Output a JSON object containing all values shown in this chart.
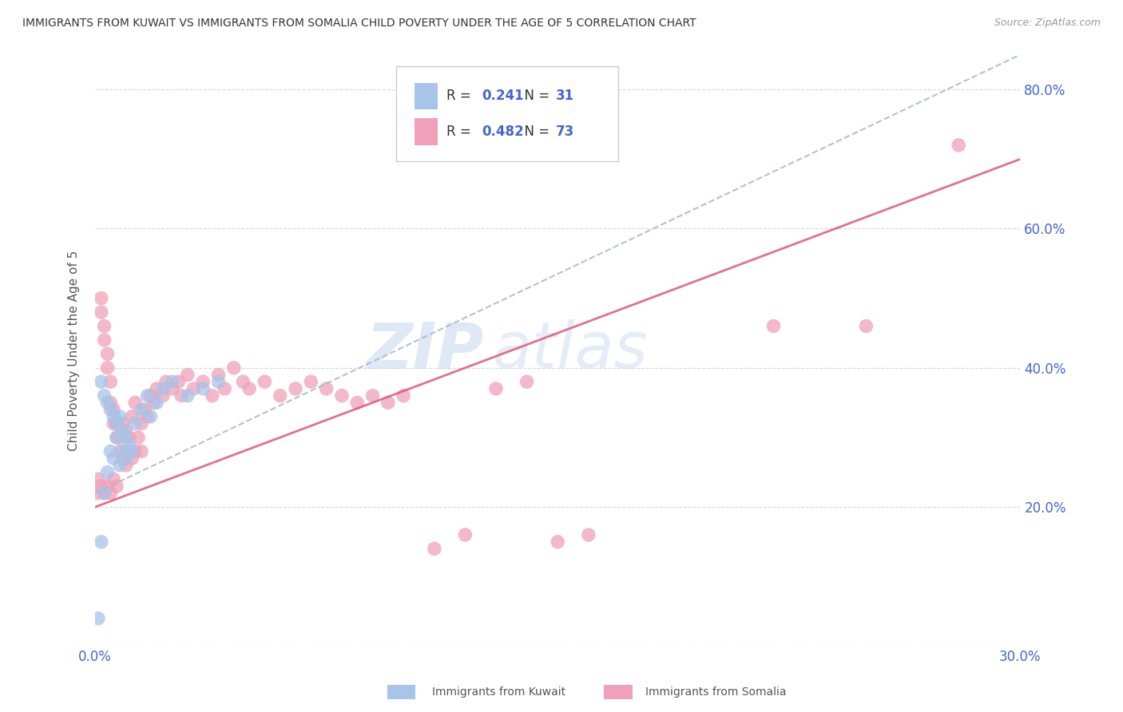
{
  "title": "IMMIGRANTS FROM KUWAIT VS IMMIGRANTS FROM SOMALIA CHILD POVERTY UNDER THE AGE OF 5 CORRELATION CHART",
  "source": "Source: ZipAtlas.com",
  "ylabel": "Child Poverty Under the Age of 5",
  "xlim": [
    0.0,
    0.3
  ],
  "ylim": [
    0.0,
    0.85
  ],
  "ytick_pos": [
    0.0,
    0.2,
    0.4,
    0.6,
    0.8
  ],
  "ytick_labels": [
    "",
    "20.0%",
    "40.0%",
    "60.0%",
    "80.0%"
  ],
  "xtick_pos": [
    0.0,
    0.05,
    0.1,
    0.15,
    0.2,
    0.25,
    0.3
  ],
  "xtick_labels": [
    "0.0%",
    "",
    "",
    "",
    "",
    "",
    "30.0%"
  ],
  "background_color": "#ffffff",
  "grid_color": "#d8d8d8",
  "watermark": "ZIPatlas",
  "kuwait_color": "#a8c4e8",
  "somalia_color": "#f0a0b8",
  "kuwait_line_color": "#6699cc",
  "somalia_line_color": "#e06080",
  "kuwait_R": 0.241,
  "kuwait_N": 31,
  "somalia_R": 0.482,
  "somalia_N": 73,
  "legend_label_kuwait": "Immigrants from Kuwait",
  "legend_label_somalia": "Immigrants from Somalia",
  "axis_color": "#4466cc",
  "title_color": "#333333",
  "kuwait_x": [
    0.001,
    0.002,
    0.002,
    0.003,
    0.003,
    0.004,
    0.004,
    0.005,
    0.005,
    0.006,
    0.006,
    0.007,
    0.007,
    0.008,
    0.008,
    0.009,
    0.009,
    0.01,
    0.01,
    0.011,
    0.012,
    0.013,
    0.015,
    0.017,
    0.018,
    0.02,
    0.022,
    0.025,
    0.03,
    0.035,
    0.04
  ],
  "kuwait_y": [
    0.04,
    0.38,
    0.15,
    0.36,
    0.22,
    0.35,
    0.25,
    0.34,
    0.28,
    0.33,
    0.27,
    0.32,
    0.3,
    0.33,
    0.26,
    0.31,
    0.28,
    0.3,
    0.27,
    0.29,
    0.28,
    0.32,
    0.34,
    0.36,
    0.33,
    0.35,
    0.37,
    0.38,
    0.36,
    0.37,
    0.38
  ],
  "somalia_x": [
    0.001,
    0.001,
    0.002,
    0.002,
    0.002,
    0.003,
    0.003,
    0.003,
    0.004,
    0.004,
    0.004,
    0.005,
    0.005,
    0.005,
    0.006,
    0.006,
    0.006,
    0.007,
    0.007,
    0.007,
    0.008,
    0.008,
    0.009,
    0.009,
    0.01,
    0.01,
    0.011,
    0.011,
    0.012,
    0.012,
    0.013,
    0.013,
    0.014,
    0.015,
    0.015,
    0.016,
    0.017,
    0.018,
    0.019,
    0.02,
    0.022,
    0.023,
    0.025,
    0.027,
    0.028,
    0.03,
    0.032,
    0.035,
    0.038,
    0.04,
    0.042,
    0.045,
    0.048,
    0.05,
    0.055,
    0.06,
    0.065,
    0.07,
    0.075,
    0.08,
    0.085,
    0.09,
    0.095,
    0.1,
    0.11,
    0.12,
    0.13,
    0.14,
    0.15,
    0.16,
    0.22,
    0.25,
    0.28
  ],
  "somalia_y": [
    0.24,
    0.22,
    0.5,
    0.48,
    0.23,
    0.46,
    0.44,
    0.22,
    0.42,
    0.4,
    0.23,
    0.38,
    0.35,
    0.22,
    0.34,
    0.32,
    0.24,
    0.3,
    0.32,
    0.23,
    0.28,
    0.3,
    0.27,
    0.32,
    0.26,
    0.31,
    0.28,
    0.3,
    0.27,
    0.33,
    0.28,
    0.35,
    0.3,
    0.32,
    0.28,
    0.34,
    0.33,
    0.36,
    0.35,
    0.37,
    0.36,
    0.38,
    0.37,
    0.38,
    0.36,
    0.39,
    0.37,
    0.38,
    0.36,
    0.39,
    0.37,
    0.4,
    0.38,
    0.37,
    0.38,
    0.36,
    0.37,
    0.38,
    0.37,
    0.36,
    0.35,
    0.36,
    0.35,
    0.36,
    0.14,
    0.16,
    0.37,
    0.38,
    0.15,
    0.16,
    0.46,
    0.46,
    0.72
  ],
  "somalia_line_x0": 0.0,
  "somalia_line_y0": 0.2,
  "somalia_line_x1": 0.3,
  "somalia_line_y1": 0.7,
  "kuwait_line_x0": 0.0,
  "kuwait_line_y0": 0.22,
  "kuwait_line_x1": 0.3,
  "kuwait_line_y1": 0.85
}
